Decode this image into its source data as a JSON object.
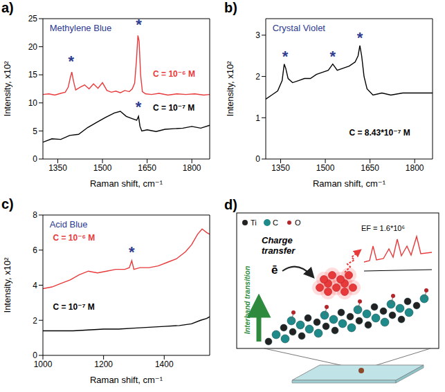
{
  "chart_data": [
    {
      "type": "line",
      "panel_label": "a)",
      "title": "Methylene Blue",
      "x_label": "Raman shift, cm⁻¹",
      "y_label": "Intensity, x10²",
      "xlim": [
        1300,
        1860
      ],
      "ylim": [
        0,
        25
      ],
      "xticks": [
        1350,
        1500,
        1650,
        1800
      ],
      "yticks": [
        0,
        5,
        10,
        15,
        20,
        25
      ],
      "grid": false,
      "series": [
        {
          "name": "C = 10⁻⁶ M",
          "color": "#e8393b",
          "x": [
            1300,
            1320,
            1340,
            1360,
            1375,
            1385,
            1392,
            1397,
            1403,
            1410,
            1425,
            1440,
            1455,
            1470,
            1485,
            1500,
            1515,
            1530,
            1545,
            1560,
            1575,
            1590,
            1600,
            1608,
            1614,
            1619,
            1623,
            1628,
            1634,
            1645,
            1665,
            1690,
            1720,
            1750,
            1780,
            1810,
            1840,
            1860
          ],
          "values": [
            11.5,
            11.6,
            11.4,
            11.7,
            11.9,
            12.8,
            14.5,
            15.5,
            13.8,
            12.3,
            12.8,
            13.2,
            12.5,
            13.4,
            12.6,
            13.6,
            12.2,
            11.9,
            12.1,
            11.8,
            12.2,
            12.0,
            12.5,
            13.5,
            17.5,
            22.0,
            21.0,
            15.0,
            12.0,
            11.6,
            11.5,
            11.7,
            11.4,
            11.6,
            11.5,
            11.6,
            11.4,
            11.5
          ]
        },
        {
          "name": "C = 10⁻⁷ M",
          "color": "#000000",
          "x": [
            1300,
            1330,
            1360,
            1390,
            1420,
            1450,
            1480,
            1510,
            1540,
            1560,
            1580,
            1600,
            1615,
            1621,
            1626,
            1632,
            1650,
            1680,
            1710,
            1740,
            1770,
            1800,
            1830,
            1860
          ],
          "values": [
            3.0,
            3.6,
            3.5,
            4.2,
            4.4,
            5.6,
            6.5,
            7.4,
            8.2,
            8.5,
            7.6,
            7.2,
            6.9,
            7.6,
            5.8,
            5.0,
            5.2,
            4.9,
            5.3,
            5.4,
            5.5,
            5.8,
            5.5,
            6.0
          ]
        }
      ],
      "annotations": [
        {
          "text": "*",
          "x": 1395,
          "y": 17.5
        },
        {
          "text": "*",
          "x": 1622,
          "y": 24
        },
        {
          "text": "*",
          "x": 1621,
          "y": 9.3
        }
      ]
    },
    {
      "type": "line",
      "panel_label": "b)",
      "title": "Crystal Violet",
      "x_label": "Raman shift, cm⁻¹",
      "y_label": "Intensity, x10²",
      "xlim": [
        1300,
        1860
      ],
      "ylim": [
        0,
        3.4
      ],
      "xticks": [
        1350,
        1500,
        1650,
        1800
      ],
      "yticks": [
        0,
        1,
        2,
        3
      ],
      "grid": false,
      "series": [
        {
          "name": "C = 8.43*10⁻⁷ M",
          "color": "#000000",
          "x": [
            1300,
            1320,
            1340,
            1355,
            1362,
            1367,
            1375,
            1390,
            1410,
            1430,
            1450,
            1470,
            1490,
            1510,
            1525,
            1540,
            1560,
            1580,
            1600,
            1610,
            1616,
            1622,
            1630,
            1640,
            1660,
            1690,
            1720,
            1760,
            1800,
            1830,
            1860
          ],
          "values": [
            1.45,
            1.55,
            1.65,
            1.9,
            2.3,
            2.2,
            1.95,
            1.85,
            1.9,
            1.95,
            1.95,
            2.05,
            2.1,
            2.15,
            2.3,
            2.15,
            2.2,
            2.25,
            2.35,
            2.5,
            2.75,
            2.5,
            2.0,
            1.7,
            1.55,
            1.6,
            1.55,
            1.6,
            1.6,
            1.6,
            1.6
          ]
        }
      ],
      "annotations": [
        {
          "text": "*",
          "x": 1365,
          "y": 2.5
        },
        {
          "text": "*",
          "x": 1525,
          "y": 2.5
        },
        {
          "text": "*",
          "x": 1616,
          "y": 2.95
        }
      ]
    },
    {
      "type": "line",
      "panel_label": "c)",
      "title": "Acid Blue",
      "x_label": "Raman shift, cm⁻¹",
      "y_label": "Intensity, x10²",
      "xlim": [
        1000,
        1550
      ],
      "ylim": [
        0,
        8
      ],
      "xticks": [
        1000,
        1200,
        1400
      ],
      "yticks": [
        0,
        2,
        4,
        6,
        8
      ],
      "grid": false,
      "series": [
        {
          "name": "C = 10⁻⁶ M",
          "color": "#e8393b",
          "x": [
            1000,
            1030,
            1060,
            1090,
            1120,
            1150,
            1180,
            1210,
            1240,
            1270,
            1285,
            1293,
            1300,
            1320,
            1350,
            1380,
            1410,
            1440,
            1470,
            1490,
            1510,
            1525,
            1540,
            1550
          ],
          "values": [
            3.8,
            3.9,
            4.1,
            4.3,
            4.6,
            4.8,
            4.7,
            4.8,
            4.9,
            4.9,
            5.0,
            5.4,
            4.9,
            5.0,
            5.0,
            5.1,
            5.3,
            5.5,
            5.9,
            6.3,
            6.9,
            7.2,
            7.0,
            6.9
          ]
        },
        {
          "name": "C = 10⁻⁷ M",
          "color": "#000000",
          "x": [
            1000,
            1050,
            1100,
            1150,
            1200,
            1250,
            1300,
            1350,
            1400,
            1450,
            1490,
            1520,
            1540,
            1550
          ],
          "values": [
            1.4,
            1.4,
            1.4,
            1.45,
            1.5,
            1.5,
            1.55,
            1.6,
            1.65,
            1.7,
            1.8,
            2.0,
            2.1,
            2.2
          ]
        }
      ],
      "annotations": [
        {
          "text": "*",
          "x": 1293,
          "y": 5.9
        }
      ]
    }
  ],
  "diagram": {
    "panel_label": "d)",
    "legend": [
      "Ti",
      "C",
      "O"
    ],
    "arrow_label": "Charge transfer",
    "electron": "ē",
    "transition_label": "Interband transition",
    "ef_label": "EF = 1.6*10⁶"
  }
}
